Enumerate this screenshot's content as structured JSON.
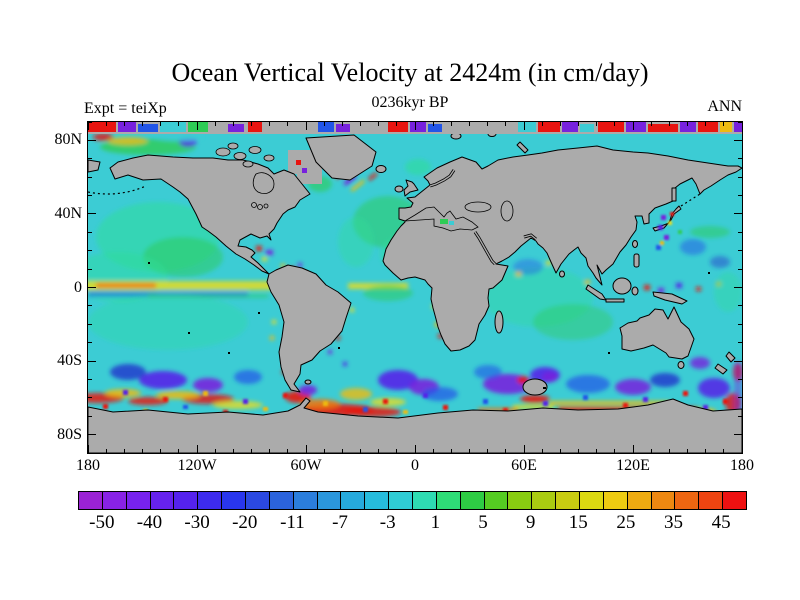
{
  "header": {
    "title": "Ocean Vertical Velocity at 2424m (in cm/day)",
    "subtitle": "0236kyr BP",
    "experiment": "Expt = teiXp",
    "season": "ANN"
  },
  "chart_data": {
    "type": "heatmap",
    "title": "Ocean Vertical Velocity at 2424m (in cm/day)",
    "subtitle": "0236kyr BP",
    "experiment_label": "Expt = teiXp",
    "season_label": "ANN",
    "variable": "Ocean Vertical Velocity",
    "depth_m": 2424,
    "units": "cm/day",
    "projection": "equirectangular",
    "lon_range": [
      -180,
      180
    ],
    "lat_range": [
      -90,
      90
    ],
    "x_tick_labels": [
      "180",
      "120W",
      "60W",
      "0",
      "60E",
      "120E",
      "180"
    ],
    "y_tick_labels": [
      "80N",
      "40N",
      "0",
      "40S",
      "80S"
    ],
    "x_minor_tick_deg": 10,
    "y_minor_tick_deg": 10,
    "grid": false,
    "land_color": "#ababab",
    "ocean_base_color": "#3cccd4",
    "colorbar": {
      "position": "bottom",
      "tick_labels": [
        "-50",
        "-40",
        "-30",
        "-20",
        "-11",
        "-7",
        "-3",
        "1",
        "5",
        "9",
        "15",
        "25",
        "35",
        "45"
      ],
      "cell_colors": [
        "#9b22d4",
        "#8822e6",
        "#7722ee",
        "#6622ee",
        "#5522ee",
        "#3d2bee",
        "#2936ee",
        "#2b49e2",
        "#2b63dd",
        "#2b7edd",
        "#2b97dd",
        "#26aadd",
        "#26bcdd",
        "#2fccd4",
        "#2edcb2",
        "#2edd77",
        "#2ecc44",
        "#55cc22",
        "#88cc11",
        "#aacc11",
        "#c8cc11",
        "#dcd911",
        "#eecb11",
        "#eeab11",
        "#ee8811",
        "#ee6611",
        "#ee4411",
        "#ee1111"
      ]
    }
  }
}
